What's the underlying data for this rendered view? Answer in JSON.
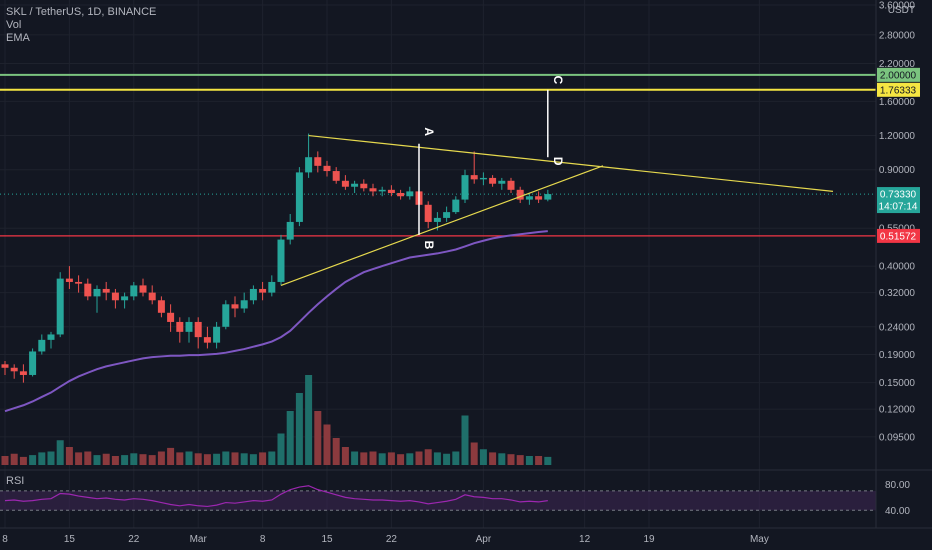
{
  "header": {
    "symbol_line": "SKL / TetherUS, 1D, BINANCE",
    "vol_label": "Vol",
    "ema_label": "EMA",
    "rsi_label": "RSI"
  },
  "colors": {
    "background": "#131722",
    "grid": "#1e222d",
    "up": "#26a69a",
    "down": "#ef5350",
    "up_vol": "#1f6f6a",
    "down_vol": "#8b3a3e",
    "ema": "#7e57c2",
    "trendline": "#e6d94e",
    "level_green": "#7bc47f",
    "level_yellow": "#f5e642",
    "level_red": "#f23645",
    "rsi_line": "#9c27b0",
    "rsi_band": "#3a2450",
    "axis_text": "#b2b5be"
  },
  "chart_data": {
    "type": "candlestick",
    "title": "SKL / TetherUS, 1D, BINANCE",
    "y_scale": "log",
    "ylim": [
      0.075,
      3.6
    ],
    "currency": "USDT",
    "price_ticks": [
      "3.60000",
      "2.80000",
      "2.20000",
      "1.60000",
      "1.20000",
      "0.90000",
      "0.55000",
      "0.40000",
      "0.32000",
      "0.24000",
      "0.19000",
      "0.15000",
      "0.12000",
      "0.09500"
    ],
    "x_ticks": [
      {
        "label": "8",
        "index": 0
      },
      {
        "label": "15",
        "index": 7
      },
      {
        "label": "22",
        "index": 14
      },
      {
        "label": "Mar",
        "index": 21
      },
      {
        "label": "8",
        "index": 28
      },
      {
        "label": "15",
        "index": 35
      },
      {
        "label": "22",
        "index": 42
      },
      {
        "label": "Apr",
        "index": 52
      },
      {
        "label": "12",
        "index": 63
      },
      {
        "label": "19",
        "index": 70
      },
      {
        "label": "May",
        "index": 82
      }
    ],
    "candles": [
      [
        0.175,
        0.18,
        0.16,
        0.17
      ],
      [
        0.17,
        0.175,
        0.155,
        0.165
      ],
      [
        0.165,
        0.175,
        0.15,
        0.16
      ],
      [
        0.16,
        0.2,
        0.158,
        0.195
      ],
      [
        0.195,
        0.225,
        0.19,
        0.215
      ],
      [
        0.215,
        0.23,
        0.2,
        0.225
      ],
      [
        0.225,
        0.38,
        0.22,
        0.36
      ],
      [
        0.36,
        0.4,
        0.33,
        0.35
      ],
      [
        0.35,
        0.37,
        0.32,
        0.345
      ],
      [
        0.345,
        0.36,
        0.3,
        0.31
      ],
      [
        0.31,
        0.34,
        0.27,
        0.33
      ],
      [
        0.33,
        0.35,
        0.3,
        0.32
      ],
      [
        0.32,
        0.33,
        0.28,
        0.3
      ],
      [
        0.3,
        0.32,
        0.28,
        0.31
      ],
      [
        0.31,
        0.35,
        0.3,
        0.34
      ],
      [
        0.34,
        0.36,
        0.31,
        0.32
      ],
      [
        0.32,
        0.34,
        0.29,
        0.3
      ],
      [
        0.3,
        0.31,
        0.26,
        0.27
      ],
      [
        0.27,
        0.29,
        0.23,
        0.25
      ],
      [
        0.25,
        0.26,
        0.21,
        0.23
      ],
      [
        0.23,
        0.26,
        0.21,
        0.25
      ],
      [
        0.25,
        0.26,
        0.2,
        0.22
      ],
      [
        0.22,
        0.24,
        0.2,
        0.21
      ],
      [
        0.21,
        0.25,
        0.2,
        0.24
      ],
      [
        0.24,
        0.3,
        0.235,
        0.29
      ],
      [
        0.29,
        0.31,
        0.26,
        0.28
      ],
      [
        0.28,
        0.32,
        0.27,
        0.3
      ],
      [
        0.3,
        0.34,
        0.29,
        0.33
      ],
      [
        0.33,
        0.35,
        0.3,
        0.32
      ],
      [
        0.32,
        0.37,
        0.31,
        0.35
      ],
      [
        0.35,
        0.52,
        0.34,
        0.5
      ],
      [
        0.5,
        0.62,
        0.48,
        0.58
      ],
      [
        0.58,
        0.92,
        0.56,
        0.88
      ],
      [
        0.88,
        1.22,
        0.84,
        1.0
      ],
      [
        1.0,
        1.05,
        0.88,
        0.93
      ],
      [
        0.93,
        0.97,
        0.85,
        0.89
      ],
      [
        0.89,
        0.92,
        0.8,
        0.82
      ],
      [
        0.82,
        0.86,
        0.76,
        0.78
      ],
      [
        0.78,
        0.82,
        0.74,
        0.8
      ],
      [
        0.8,
        0.83,
        0.75,
        0.77
      ],
      [
        0.77,
        0.8,
        0.72,
        0.75
      ],
      [
        0.75,
        0.78,
        0.72,
        0.76
      ],
      [
        0.76,
        0.79,
        0.72,
        0.74
      ],
      [
        0.74,
        0.76,
        0.7,
        0.72
      ],
      [
        0.72,
        0.78,
        0.7,
        0.75
      ],
      [
        0.75,
        0.79,
        0.65,
        0.67
      ],
      [
        0.67,
        0.69,
        0.55,
        0.58
      ],
      [
        0.58,
        0.63,
        0.54,
        0.6
      ],
      [
        0.6,
        0.66,
        0.58,
        0.63
      ],
      [
        0.63,
        0.72,
        0.62,
        0.7
      ],
      [
        0.7,
        0.9,
        0.68,
        0.86
      ],
      [
        0.86,
        1.05,
        0.8,
        0.83
      ],
      [
        0.83,
        0.88,
        0.79,
        0.84
      ],
      [
        0.84,
        0.86,
        0.78,
        0.8
      ],
      [
        0.8,
        0.84,
        0.76,
        0.82
      ],
      [
        0.82,
        0.84,
        0.74,
        0.76
      ],
      [
        0.76,
        0.78,
        0.68,
        0.7
      ],
      [
        0.7,
        0.74,
        0.67,
        0.72
      ],
      [
        0.72,
        0.75,
        0.68,
        0.7
      ],
      [
        0.7,
        0.76,
        0.69,
        0.7333
      ]
    ],
    "volume": [
      20,
      25,
      18,
      22,
      28,
      30,
      55,
      40,
      28,
      30,
      22,
      25,
      20,
      22,
      26,
      24,
      22,
      30,
      38,
      28,
      30,
      26,
      24,
      25,
      30,
      28,
      26,
      24,
      28,
      30,
      70,
      120,
      160,
      200,
      120,
      90,
      60,
      40,
      30,
      28,
      30,
      26,
      28,
      24,
      26,
      30,
      35,
      28,
      25,
      30,
      110,
      50,
      35,
      28,
      26,
      24,
      22,
      20,
      20,
      18
    ],
    "ema": [
      0.118,
      0.121,
      0.124,
      0.128,
      0.133,
      0.138,
      0.145,
      0.152,
      0.158,
      0.163,
      0.168,
      0.172,
      0.175,
      0.178,
      0.181,
      0.184,
      0.186,
      0.187,
      0.188,
      0.188,
      0.189,
      0.189,
      0.19,
      0.191,
      0.193,
      0.196,
      0.199,
      0.203,
      0.207,
      0.212,
      0.22,
      0.232,
      0.25,
      0.27,
      0.29,
      0.31,
      0.33,
      0.35,
      0.365,
      0.38,
      0.39,
      0.4,
      0.41,
      0.42,
      0.43,
      0.435,
      0.44,
      0.445,
      0.452,
      0.46,
      0.472,
      0.485,
      0.495,
      0.505,
      0.512,
      0.518,
      0.523,
      0.528,
      0.533,
      0.537
    ],
    "rsi": [
      55,
      56,
      54,
      55,
      57,
      58,
      66,
      65,
      62,
      60,
      58,
      59,
      57,
      56,
      58,
      57,
      55,
      52,
      49,
      47,
      49,
      47,
      46,
      48,
      52,
      51,
      53,
      55,
      54,
      56,
      65,
      72,
      76,
      78,
      72,
      68,
      64,
      60,
      58,
      57,
      56,
      56,
      55,
      54,
      55,
      53,
      50,
      52,
      54,
      57,
      64,
      61,
      60,
      58,
      58,
      56,
      53,
      54,
      53,
      55
    ],
    "rsi_band": [
      40,
      70
    ],
    "rsi_ticks": [
      "80.00",
      "40.00"
    ],
    "levels": [
      {
        "price": 2.0,
        "label": "2.00000",
        "color": "#7bc47f"
      },
      {
        "price": 1.76333,
        "label": "1.76333",
        "color": "#f5e642"
      },
      {
        "price": 0.51572,
        "label": "0.51572",
        "color": "#f23645"
      }
    ],
    "current_price": {
      "label": "0.73330",
      "countdown": "14:07:14"
    },
    "trendlines": [
      {
        "from": [
          33,
          1.2
        ],
        "to": [
          90,
          0.75
        ]
      },
      {
        "from": [
          30,
          0.34
        ],
        "to": [
          65,
          0.93
        ]
      }
    ],
    "pattern_points": [
      {
        "label": "A",
        "index": 45,
        "price": 1.12
      },
      {
        "label": "B",
        "index": 45,
        "price": 0.52
      },
      {
        "label": "C",
        "index": 59,
        "price": 1.76333
      },
      {
        "label": "D",
        "index": 59,
        "price": 1.0
      }
    ]
  }
}
